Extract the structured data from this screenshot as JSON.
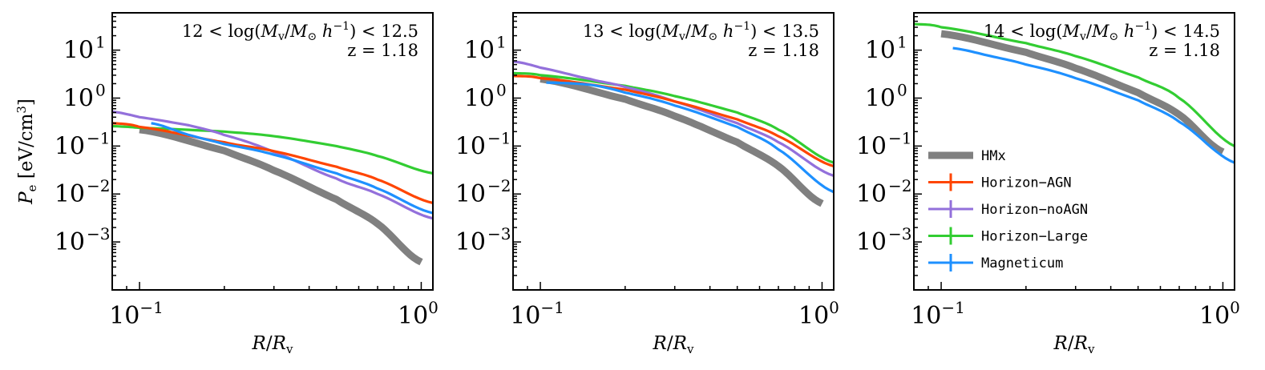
{
  "chart_data": [
    {
      "type": "line",
      "panel": "left",
      "annotation": {
        "mass_bin": "12 < log(Mv/M⊙ h^-1) < 12.5",
        "mass_lo": "12",
        "mass_hi": "12.5",
        "redshift": "z = 1.18"
      },
      "xlabel": "R/Rv",
      "ylabel": "Pe [eV/cm3]",
      "xscale": "log",
      "yscale": "log",
      "xlim": [
        0.08,
        1.1
      ],
      "ylim": [
        0.0001,
        60
      ],
      "x_ticks": [
        {
          "value": 0.1,
          "base": "10",
          "exp": "−1"
        },
        {
          "value": 1,
          "base": "10",
          "exp": "0"
        }
      ],
      "y_ticks": [
        {
          "value": 0.001,
          "base": "10",
          "exp": "−3"
        },
        {
          "value": 0.01,
          "base": "10",
          "exp": "−2"
        },
        {
          "value": 0.1,
          "base": "10",
          "exp": "−1"
        },
        {
          "value": 1,
          "base": "10",
          "exp": "0"
        },
        {
          "value": 10,
          "base": "10",
          "exp": "1"
        }
      ],
      "series": [
        {
          "name": "HMx",
          "x": [
            0.1,
            0.2,
            0.3,
            0.5,
            0.7,
            1.0
          ],
          "y": [
            0.22,
            0.08,
            0.031,
            0.0077,
            0.0024,
            0.00038
          ]
        },
        {
          "name": "Horizon-AGN",
          "x": [
            0.08,
            0.1,
            0.2,
            0.3,
            0.5,
            0.7,
            1.1
          ],
          "y": [
            0.3,
            0.25,
            0.12,
            0.078,
            0.037,
            0.02,
            0.0065
          ]
        },
        {
          "name": "Horizon-noAGN",
          "x": [
            0.08,
            0.1,
            0.15,
            0.2,
            0.3,
            0.5,
            0.7,
            1.1
          ],
          "y": [
            0.52,
            0.4,
            0.27,
            0.17,
            0.075,
            0.021,
            0.01,
            0.0031
          ]
        },
        {
          "name": "Horizon-Large",
          "x": [
            0.08,
            0.1,
            0.2,
            0.3,
            0.5,
            0.7,
            1.1
          ],
          "y": [
            0.26,
            0.24,
            0.2,
            0.16,
            0.1,
            0.062,
            0.027
          ]
        },
        {
          "name": "Magneticum",
          "x": [
            0.11,
            0.15,
            0.2,
            0.3,
            0.5,
            0.7,
            1.1
          ],
          "y": [
            0.3,
            0.17,
            0.11,
            0.066,
            0.027,
            0.013,
            0.004
          ]
        }
      ]
    },
    {
      "type": "line",
      "panel": "middle",
      "annotation": {
        "mass_bin": "13 < log(Mv/M⊙ h^-1) < 13.5",
        "mass_lo": "13",
        "mass_hi": "13.5",
        "redshift": "z = 1.18"
      },
      "xlabel": "R/Rv",
      "ylabel": "",
      "xscale": "log",
      "yscale": "log",
      "xlim": [
        0.08,
        1.1
      ],
      "ylim": [
        0.0001,
        60
      ],
      "x_ticks": [
        {
          "value": 0.1,
          "base": "10",
          "exp": "−1"
        },
        {
          "value": 1,
          "base": "10",
          "exp": "0"
        }
      ],
      "y_ticks": [
        {
          "value": 0.001,
          "base": "10",
          "exp": "−3"
        },
        {
          "value": 0.01,
          "base": "10",
          "exp": "−2"
        },
        {
          "value": 0.1,
          "base": "10",
          "exp": "−1"
        },
        {
          "value": 1,
          "base": "10",
          "exp": "0"
        },
        {
          "value": 10,
          "base": "10",
          "exp": "1"
        }
      ],
      "series": [
        {
          "name": "HMx",
          "x": [
            0.1,
            0.2,
            0.3,
            0.5,
            0.7,
            1.0
          ],
          "y": [
            2.5,
            0.95,
            0.42,
            0.12,
            0.038,
            0.0063
          ]
        },
        {
          "name": "Horizon-AGN",
          "x": [
            0.08,
            0.1,
            0.2,
            0.3,
            0.5,
            0.7,
            1.1
          ],
          "y": [
            2.9,
            2.6,
            1.5,
            0.85,
            0.36,
            0.16,
            0.038
          ]
        },
        {
          "name": "Horizon-noAGN",
          "x": [
            0.08,
            0.1,
            0.15,
            0.2,
            0.3,
            0.5,
            0.7,
            1.1
          ],
          "y": [
            5.8,
            4.3,
            2.5,
            1.7,
            0.85,
            0.3,
            0.12,
            0.024
          ]
        },
        {
          "name": "Horizon-Large",
          "x": [
            0.08,
            0.1,
            0.2,
            0.3,
            0.5,
            0.7,
            1.1
          ],
          "y": [
            3.3,
            3.0,
            1.8,
            1.1,
            0.5,
            0.22,
            0.045
          ]
        },
        {
          "name": "Magneticum",
          "x": [
            0.105,
            0.15,
            0.2,
            0.3,
            0.5,
            0.7,
            1.1
          ],
          "y": [
            2.1,
            1.9,
            1.3,
            0.7,
            0.25,
            0.085,
            0.011
          ]
        }
      ]
    },
    {
      "type": "line",
      "panel": "right",
      "annotation": {
        "mass_bin": "14 < log(Mv/M⊙ h^-1) < 14.5",
        "mass_lo": "14",
        "mass_hi": "14.5",
        "redshift": "z = 1.18"
      },
      "xlabel": "R/Rv",
      "ylabel": "",
      "xscale": "log",
      "yscale": "log",
      "xlim": [
        0.08,
        1.1
      ],
      "ylim": [
        0.0001,
        60
      ],
      "x_ticks": [
        {
          "value": 0.1,
          "base": "10",
          "exp": "−1"
        },
        {
          "value": 1,
          "base": "10",
          "exp": "0"
        }
      ],
      "y_ticks": [
        {
          "value": 0.001,
          "base": "10",
          "exp": "−3"
        },
        {
          "value": 0.01,
          "base": "10",
          "exp": "−2"
        },
        {
          "value": 0.1,
          "base": "10",
          "exp": "−1"
        },
        {
          "value": 1,
          "base": "10",
          "exp": "0"
        },
        {
          "value": 10,
          "base": "10",
          "exp": "1"
        }
      ],
      "legend": {
        "placement": "center-left",
        "entries": [
          "HMx",
          "Horizon−AGN",
          "Horizon−noAGN",
          "Horizon−Large",
          "Magneticum"
        ]
      },
      "series": [
        {
          "name": "HMx",
          "x": [
            0.1,
            0.2,
            0.3,
            0.5,
            0.7,
            1.0
          ],
          "y": [
            22,
            9.0,
            4.2,
            1.3,
            0.45,
            0.075
          ]
        },
        {
          "name": "Horizon-AGN",
          "x": [],
          "y": []
        },
        {
          "name": "Horizon-noAGN",
          "x": [],
          "y": []
        },
        {
          "name": "Horizon-Large",
          "x": [
            0.08,
            0.1,
            0.2,
            0.3,
            0.5,
            0.7,
            1.1
          ],
          "y": [
            35,
            30,
            14,
            7.5,
            2.7,
            1.0,
            0.1
          ]
        },
        {
          "name": "Magneticum",
          "x": [
            0.11,
            0.15,
            0.2,
            0.3,
            0.5,
            0.7,
            1.1
          ],
          "y": [
            11,
            7.5,
            5.0,
            2.6,
            0.9,
            0.32,
            0.045
          ]
        }
      ]
    }
  ],
  "series_styles": {
    "HMx": {
      "color": "#808080",
      "label": "HMx"
    },
    "Horizon-AGN": {
      "color": "#ff4500",
      "label": "Horizon−AGN"
    },
    "Horizon-noAGN": {
      "color": "#9370db",
      "label": "Horizon−noAGN"
    },
    "Horizon-Large": {
      "color": "#32cd32",
      "label": "Horizon−Large"
    },
    "Magneticum": {
      "color": "#1e90ff",
      "label": "Magneticum"
    }
  }
}
